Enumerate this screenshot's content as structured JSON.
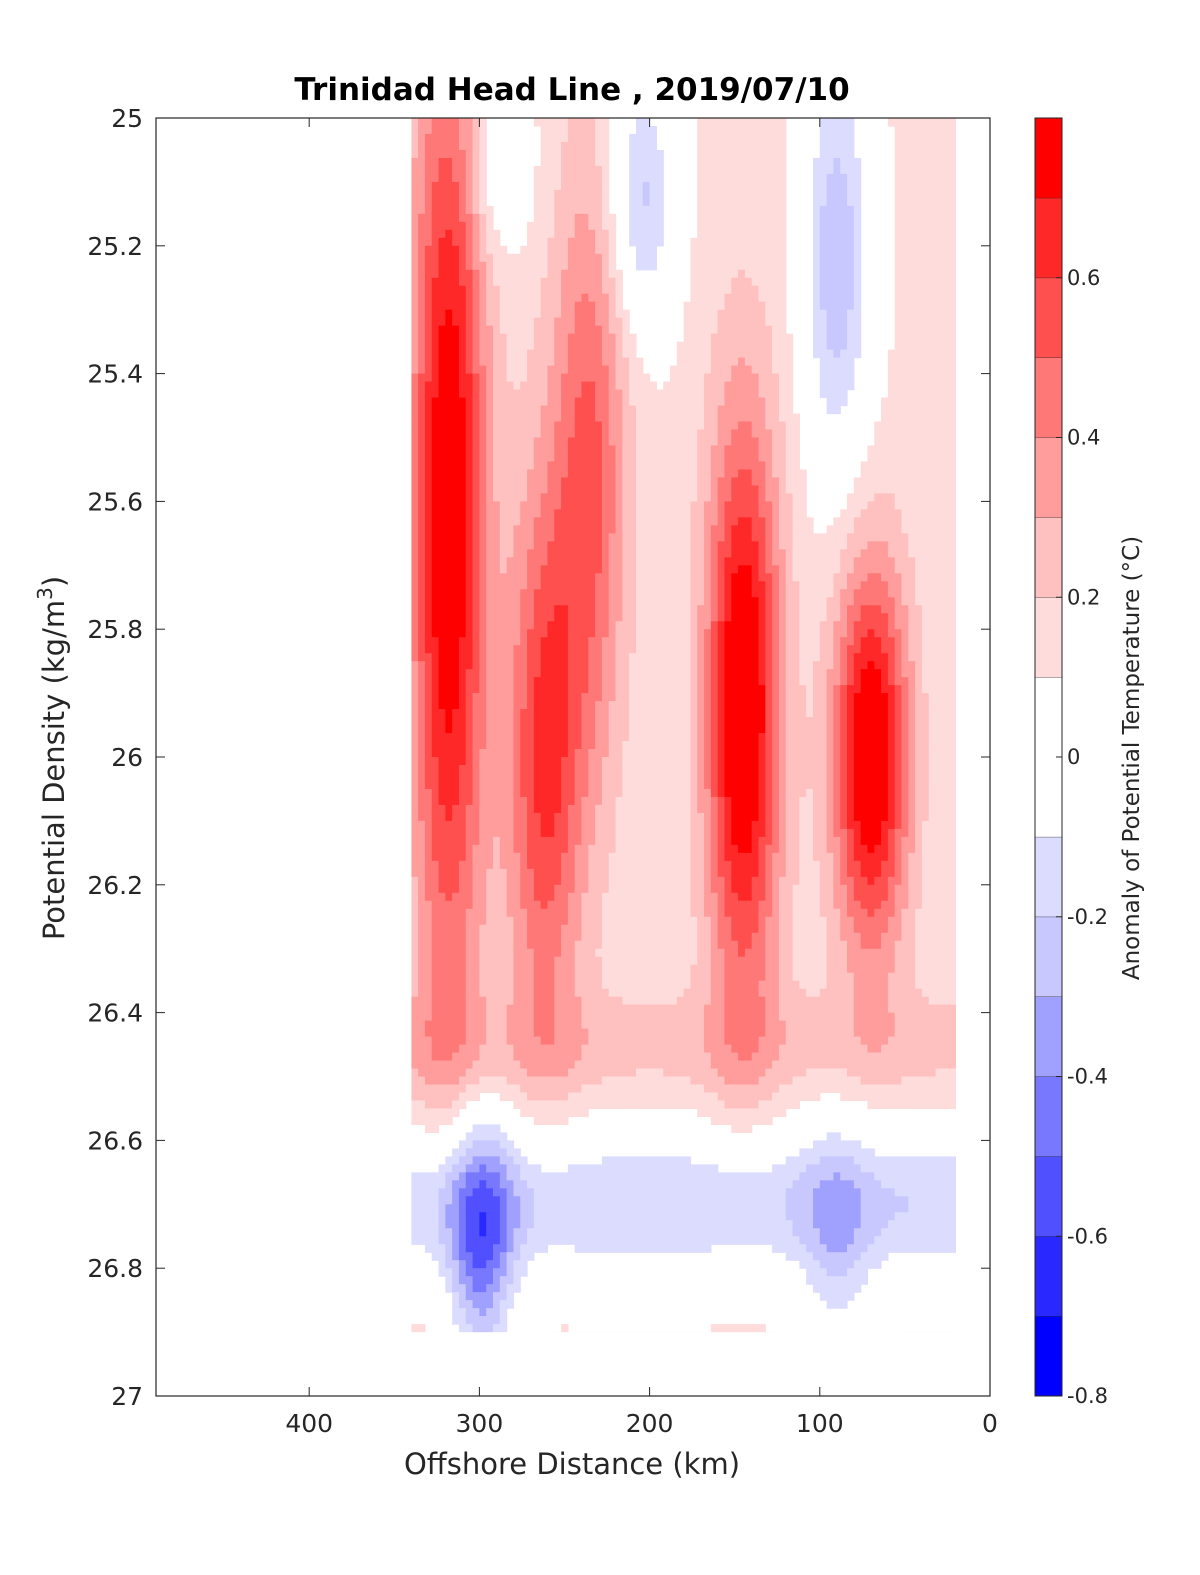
{
  "chart_data": {
    "type": "heatmap",
    "subtype": "filled-contour",
    "title": "Trinidad Head Line , 2019/07/10",
    "xlabel": "Offshore Distance (km)",
    "ylabel": "Potential Density (kg/m",
    "ylabel_superscript": "3",
    "ylabel_close": ")",
    "xlim": [
      490,
      0
    ],
    "ylim": [
      25,
      27
    ],
    "y_reversed": true,
    "x_reversed": true,
    "xticks": [
      400,
      300,
      200,
      100,
      0
    ],
    "yticks": [
      25,
      25.2,
      25.4,
      25.6,
      25.8,
      26,
      26.2,
      26.4,
      26.6,
      26.8,
      27
    ],
    "ytick_labels": [
      "25",
      "25.2",
      "25.4",
      "25.6",
      "25.8",
      "26",
      "26.2",
      "26.4",
      "26.6",
      "26.8",
      "27"
    ],
    "grid": false,
    "colorbar": {
      "label": "Anomaly of Potential Temperature (°C)",
      "range": [
        -0.8,
        0.8
      ],
      "levels": [
        -0.8,
        -0.7,
        -0.6,
        -0.5,
        -0.4,
        -0.3,
        -0.2,
        -0.1,
        0.1,
        0.2,
        0.3,
        0.4,
        0.5,
        0.6,
        0.7,
        0.8
      ],
      "colors": [
        "#0000ff",
        "#2828ff",
        "#5050ff",
        "#7878ff",
        "#a0a0ff",
        "#c8c8ff",
        "#dcdcff",
        "#ffffff",
        "#ffdcdc",
        "#ffc0c0",
        "#ff9c9c",
        "#ff7878",
        "#ff5050",
        "#ff2828",
        "#ff0000"
      ],
      "ticks": [
        -0.8,
        -0.6,
        -0.4,
        -0.2,
        0,
        0.2,
        0.4,
        0.6
      ],
      "tick_labels": [
        "-0.8",
        "-0.6",
        "-0.4",
        "-0.2",
        "0",
        "0.2",
        "0.4",
        "0.6"
      ]
    },
    "x_extent_of_data": [
      20,
      340
    ],
    "y_extent_of_data": [
      25,
      26.9
    ],
    "features": [
      {
        "kind": "warm",
        "x": 318,
        "y": [
          25.05,
          26.2
        ],
        "peak": 0.7
      },
      {
        "kind": "warm",
        "x": 262,
        "y": [
          25.7,
          26.3
        ],
        "peak": 0.5
      },
      {
        "kind": "warm",
        "x": 145,
        "y": [
          25.6,
          26.25
        ],
        "peak": 0.75
      },
      {
        "kind": "warm",
        "x": 70,
        "y": [
          25.8,
          26.2
        ],
        "peak": 0.75
      },
      {
        "kind": "warm",
        "x": 235,
        "y": [
          25.2,
          25.9
        ],
        "peak": 0.4
      },
      {
        "kind": "cool",
        "x": 300,
        "y": [
          26.65,
          26.9
        ],
        "peak": -0.5
      },
      {
        "kind": "cool",
        "x": 205,
        "y": [
          25.0,
          25.25
        ],
        "peak": -0.35
      },
      {
        "kind": "cool",
        "x": 90,
        "y": [
          25.0,
          25.45
        ],
        "peak": -0.4
      },
      {
        "kind": "cool",
        "x": 290,
        "y": [
          25.0,
          25.15
        ],
        "peak": -0.2
      },
      {
        "kind": "cool",
        "x": 90,
        "y": [
          26.65,
          26.9
        ],
        "peak": -0.2
      }
    ]
  }
}
